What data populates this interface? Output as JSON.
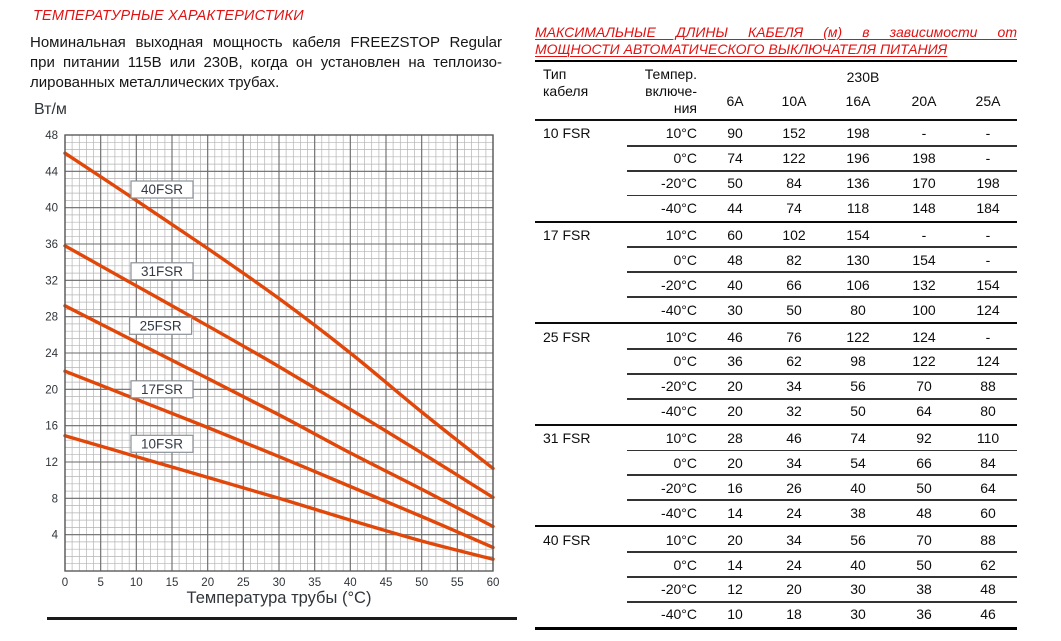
{
  "left_section": {
    "title": "ТЕМПЕРАТУРНЫЕ ХАРАКТЕРИСТИКИ",
    "description_lines": [
      "Номинальная выходная мощность кабеля FREEZSTOP Regular",
      "при питании 115В или 230В, когда он установлен на теплоизо-",
      "лированных металлических трубах."
    ]
  },
  "right_section": {
    "title_lines": [
      "МАКСИМАЛЬНЫЕ ДЛИНЫ КАБЕЛЯ (м) в зависимости от",
      "МОЩНОСТИ АВТОМАТИЧЕСКОГО ВЫКЛЮЧАТЕЛЯ ПИТАНИЯ"
    ],
    "table": {
      "headers": {
        "type": "Тип\nкабеля",
        "temp": "Темпер.\nвключе-\nния",
        "voltage": "230В",
        "amps": [
          "6A",
          "10A",
          "16A",
          "20A",
          "25A"
        ]
      },
      "sections": [
        {
          "type": "10 FSR",
          "rows": [
            {
              "temp": "10°C",
              "values": [
                "90",
                "152",
                "198",
                "-",
                "-"
              ]
            },
            {
              "temp": "0°C",
              "values": [
                "74",
                "122",
                "196",
                "198",
                "-"
              ]
            },
            {
              "temp": "-20°C",
              "values": [
                "50",
                "84",
                "136",
                "170",
                "198"
              ]
            },
            {
              "temp": "-40°C",
              "values": [
                "44",
                "74",
                "118",
                "148",
                "184"
              ]
            }
          ]
        },
        {
          "type": "17 FSR",
          "rows": [
            {
              "temp": "10°C",
              "values": [
                "60",
                "102",
                "154",
                "-",
                "-"
              ]
            },
            {
              "temp": "0°C",
              "values": [
                "48",
                "82",
                "130",
                "154",
                "-"
              ]
            },
            {
              "temp": "-20°C",
              "values": [
                "40",
                "66",
                "106",
                "132",
                "154"
              ]
            },
            {
              "temp": "-40°C",
              "values": [
                "30",
                "50",
                "80",
                "100",
                "124"
              ]
            }
          ]
        },
        {
          "type": "25 FSR",
          "rows": [
            {
              "temp": "10°C",
              "values": [
                "46",
                "76",
                "122",
                "124",
                "-"
              ]
            },
            {
              "temp": "0°C",
              "values": [
                "36",
                "62",
                "98",
                "122",
                "124"
              ]
            },
            {
              "temp": "-20°C",
              "values": [
                "20",
                "34",
                "56",
                "70",
                "88"
              ]
            },
            {
              "temp": "-40°C",
              "values": [
                "20",
                "32",
                "50",
                "64",
                "80"
              ]
            }
          ]
        },
        {
          "type": "31 FSR",
          "rows": [
            {
              "temp": "10°C",
              "values": [
                "28",
                "46",
                "74",
                "92",
                "110"
              ]
            },
            {
              "temp": "0°C",
              "values": [
                "20",
                "34",
                "54",
                "66",
                "84"
              ]
            },
            {
              "temp": "-20°C",
              "values": [
                "16",
                "26",
                "40",
                "50",
                "64"
              ]
            },
            {
              "temp": "-40°C",
              "values": [
                "14",
                "24",
                "38",
                "48",
                "60"
              ]
            }
          ]
        },
        {
          "type": "40 FSR",
          "rows": [
            {
              "temp": "10°C",
              "values": [
                "20",
                "34",
                "56",
                "70",
                "88"
              ]
            },
            {
              "temp": "0°C",
              "values": [
                "14",
                "24",
                "40",
                "50",
                "62"
              ]
            },
            {
              "temp": "-20°C",
              "values": [
                "12",
                "20",
                "30",
                "38",
                "48"
              ]
            },
            {
              "temp": "-40°C",
              "values": [
                "10",
                "18",
                "30",
                "36",
                "46"
              ]
            }
          ]
        }
      ]
    }
  },
  "chart_data": {
    "type": "line",
    "title": "",
    "xlabel": "Температура трубы (°C)",
    "ylabel": "Вт/м",
    "xlim": [
      0,
      60
    ],
    "ylim": [
      0,
      48
    ],
    "x_ticks": [
      0,
      5,
      10,
      15,
      20,
      25,
      30,
      35,
      40,
      45,
      50,
      55,
      60
    ],
    "y_ticks": [
      4,
      8,
      12,
      16,
      20,
      24,
      28,
      32,
      36,
      40,
      44,
      48
    ],
    "grid": {
      "minor_x": 1,
      "minor_y": 0.8,
      "major_x": 5,
      "major_y": 4
    },
    "x": [
      0,
      10,
      20,
      30,
      40,
      50,
      60
    ],
    "series": [
      {
        "name": "40FSR",
        "values": [
          46.0,
          40.8,
          35.5,
          30.0,
          24.0,
          17.5,
          11.3
        ],
        "label_pos": [
          13.6,
          42.0
        ]
      },
      {
        "name": "31FSR",
        "values": [
          35.8,
          31.4,
          27.0,
          22.5,
          17.8,
          13.0,
          8.1
        ],
        "label_pos": [
          13.6,
          33.0
        ]
      },
      {
        "name": "25FSR",
        "values": [
          29.2,
          25.2,
          21.2,
          17.2,
          13.0,
          9.0,
          4.9
        ],
        "label_pos": [
          13.4,
          27.0
        ]
      },
      {
        "name": "17FSR",
        "values": [
          22.0,
          18.9,
          15.8,
          12.6,
          9.3,
          6.0,
          2.6
        ],
        "label_pos": [
          13.6,
          20.0
        ]
      },
      {
        "name": "10FSR",
        "values": [
          14.9,
          12.6,
          10.3,
          8.0,
          5.6,
          3.3,
          1.3
        ],
        "label_pos": [
          13.6,
          14.0
        ]
      }
    ],
    "legend_position": "on-curve-boxes",
    "line_color": "#e2470a"
  },
  "colors": {
    "accent_red": "#e11212",
    "curve_orange": "#e2470a",
    "grid_minor": "#b4b4b4",
    "grid_major": "#6a6a6a"
  }
}
